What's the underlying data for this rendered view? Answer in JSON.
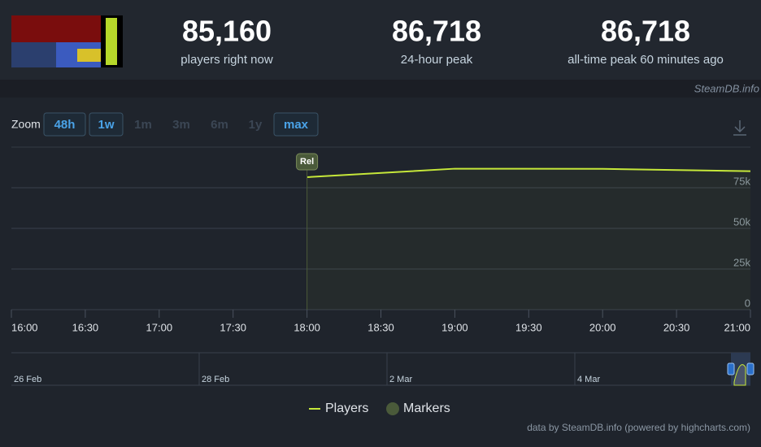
{
  "header": {
    "stats": [
      {
        "value": "85,160",
        "label": "players right now"
      },
      {
        "value": "86,718",
        "label": "24-hour peak"
      },
      {
        "value": "86,718",
        "label": "all-time peak 60 minutes ago"
      }
    ],
    "watermark": "SteamDB.info"
  },
  "zoom": {
    "label": "Zoom",
    "buttons": [
      "48h",
      "1w",
      "1m",
      "3m",
      "6m",
      "1y",
      "max"
    ]
  },
  "chart_data": {
    "type": "line",
    "x": [
      18,
      19,
      20,
      21
    ],
    "series": [
      {
        "name": "Players",
        "color": "#c6e83a",
        "values": [
          81500,
          86718,
          86600,
          85160
        ]
      }
    ],
    "markers": {
      "name": "Markers",
      "color": "#4a5a3a",
      "x": [
        18
      ],
      "labels": [
        "Rel"
      ]
    },
    "xlim": [
      16,
      21
    ],
    "xticks": [
      {
        "value": 16,
        "label": "16:00"
      },
      {
        "value": 16.5,
        "label": "16:30"
      },
      {
        "value": 17,
        "label": "17:00"
      },
      {
        "value": 17.5,
        "label": "17:30"
      },
      {
        "value": 18,
        "label": "18:00"
      },
      {
        "value": 18.5,
        "label": "18:30"
      },
      {
        "value": 19,
        "label": "19:00"
      },
      {
        "value": 19.5,
        "label": "19:30"
      },
      {
        "value": 20,
        "label": "20:00"
      },
      {
        "value": 20.5,
        "label": "20:30"
      },
      {
        "value": 21,
        "label": "21:00"
      }
    ],
    "ylim": [
      0,
      100000
    ],
    "yticks": [
      {
        "value": 0,
        "label": "0"
      },
      {
        "value": 25000,
        "label": "25k"
      },
      {
        "value": 50000,
        "label": "50k"
      },
      {
        "value": 75000,
        "label": "75k"
      }
    ],
    "grid": true,
    "navigator_labels": [
      "26 Feb",
      "28 Feb",
      "2 Mar",
      "4 Mar"
    ],
    "credit": "data by SteamDB.info (powered by highcharts.com)"
  }
}
